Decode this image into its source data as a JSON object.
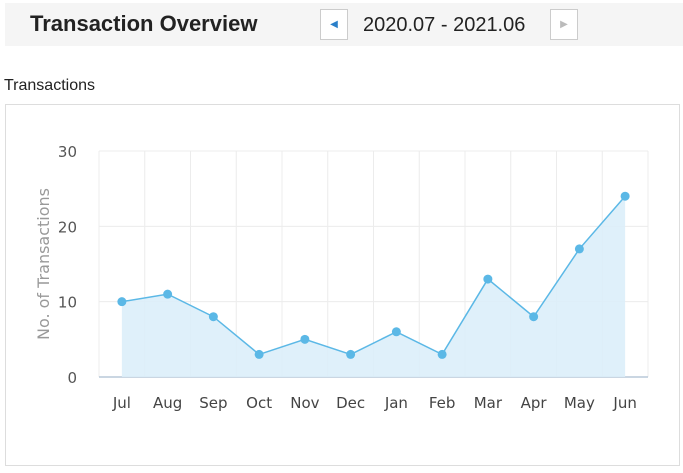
{
  "header": {
    "title": "Transaction Overview",
    "date_range": "2020.07 - 2021.06",
    "prev_icon": "triangle-left-icon",
    "next_icon": "triangle-right-icon"
  },
  "section_label": "Transactions",
  "colors": {
    "line": "#5bb8e6",
    "fill": "#dbeef9",
    "prev_arrow": "#2a7fc9",
    "next_arrow": "#bbbbbb"
  },
  "chart_data": {
    "type": "area",
    "title": "",
    "xlabel": "",
    "ylabel": "No. of Transactions",
    "categories": [
      "Jul",
      "Aug",
      "Sep",
      "Oct",
      "Nov",
      "Dec",
      "Jan",
      "Feb",
      "Mar",
      "Apr",
      "May",
      "Jun"
    ],
    "values": [
      10,
      11,
      8,
      3,
      5,
      3,
      6,
      3,
      13,
      8,
      17,
      24
    ],
    "ylim": [
      0,
      30
    ],
    "yticks": [
      0,
      10,
      20,
      30
    ],
    "grid": true,
    "legend": "none"
  }
}
